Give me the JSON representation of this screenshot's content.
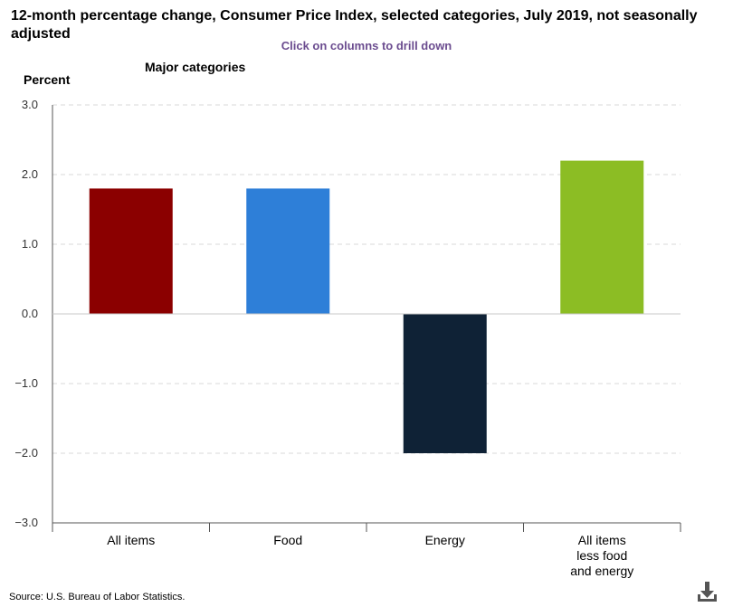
{
  "header": {
    "title": "12-month percentage change, Consumer Price Index, selected categories, July 2019, not seasonally adjusted",
    "drill_hint": "Click on columns to drill down",
    "subtitle": "Major categories"
  },
  "footer": {
    "source": "Source: U.S. Bureau of Labor Statistics."
  },
  "icons": {
    "download": "download-icon"
  },
  "chart_data": {
    "type": "bar",
    "title": "12-month percentage change, Consumer Price Index, selected categories, July 2019, not seasonally adjusted",
    "subtitle": "Major categories",
    "ylabel": "Percent",
    "xlabel": "",
    "ylim": [
      -3.0,
      3.0
    ],
    "yticks": [
      3.0,
      2.0,
      1.0,
      0.0,
      -1.0,
      -2.0,
      -3.0
    ],
    "ytick_labels": [
      "3.0",
      "2.0",
      "1.0",
      "0.0",
      "−1.0",
      "−2.0",
      "−3.0"
    ],
    "grid": true,
    "categories": [
      [
        "All items"
      ],
      [
        "Food"
      ],
      [
        "Energy"
      ],
      [
        "All items",
        "less food",
        "and energy"
      ]
    ],
    "values": [
      1.8,
      1.8,
      -2.0,
      2.2
    ],
    "colors": [
      "#8b0000",
      "#2e7fd8",
      "#0f2236",
      "#8cbd24"
    ]
  }
}
